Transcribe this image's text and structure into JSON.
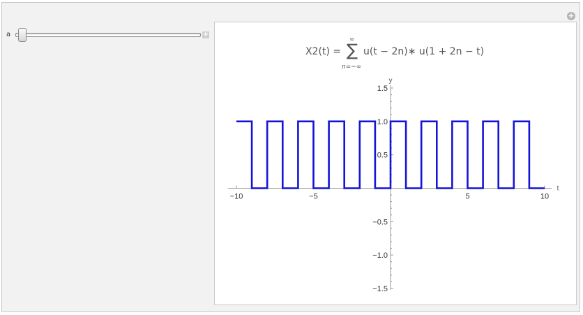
{
  "controls": {
    "slider_label": "a",
    "slider_value": 0.0,
    "corner_icon": "plus-circle-icon",
    "slider_plus_icon": "plus-icon"
  },
  "formula": {
    "lhs": "X2(t) =",
    "sum_symbol": "∑",
    "upper_limit": "∞",
    "lower_limit": "n=−∞",
    "rhs": "u(t − 2n)∗ u(1 + 2n − t)"
  },
  "chart_data": {
    "type": "line",
    "xlabel": "t",
    "ylabel": "y",
    "xlim": [
      -10,
      10
    ],
    "ylim": [
      -1.5,
      1.5
    ],
    "x_ticks": [
      -10,
      -5,
      5,
      10
    ],
    "x_tick_labels": [
      "−10",
      "−5",
      "5",
      "10"
    ],
    "y_ticks": [
      1.5,
      1.0,
      0.5,
      -0.5,
      -1.0,
      -1.5
    ],
    "y_tick_labels": [
      "1.5",
      "1.0",
      "0.5",
      "−0.5",
      "−1.0",
      "−1.5"
    ],
    "series": [
      {
        "color": "#1414d8",
        "x": [
          -10,
          -9,
          -9,
          -8,
          -8,
          -7,
          -7,
          -6,
          -6,
          -5,
          -5,
          -4,
          -4,
          -3,
          -3,
          -2,
          -2,
          -1,
          -1,
          0,
          0,
          1,
          1,
          2,
          2,
          3,
          3,
          4,
          4,
          5,
          5,
          6,
          6,
          7,
          7,
          8,
          8,
          9,
          9,
          10
        ],
        "y": [
          1,
          1,
          0,
          0,
          1,
          1,
          0,
          0,
          1,
          1,
          0,
          0,
          1,
          1,
          0,
          0,
          1,
          1,
          0,
          0,
          1,
          1,
          0,
          0,
          1,
          1,
          0,
          0,
          1,
          1,
          0,
          0,
          1,
          1,
          0,
          0,
          1,
          1,
          0,
          0
        ]
      }
    ],
    "grid": false
  }
}
